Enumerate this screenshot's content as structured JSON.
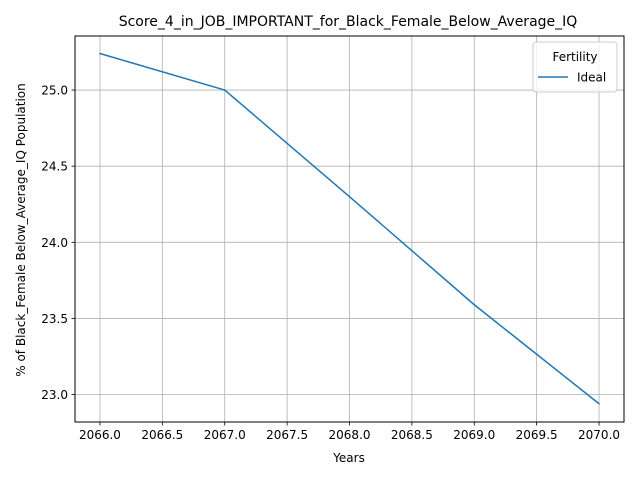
{
  "chart_data": {
    "type": "line",
    "title": "Score_4_in_JOB_IMPORTANT_for_Black_Female_Below_Average_IQ",
    "xlabel": "Years",
    "ylabel": "% of Black_Female Below_Average_IQ Population",
    "xlim": [
      2065.8,
      2070.2
    ],
    "ylim": [
      22.82,
      25.355
    ],
    "xticks": [
      2066.0,
      2066.5,
      2067.0,
      2067.5,
      2068.0,
      2068.5,
      2069.0,
      2069.5,
      2070.0
    ],
    "xtick_labels": [
      "2066.0",
      "2066.5",
      "2067.0",
      "2067.5",
      "2068.0",
      "2068.5",
      "2069.0",
      "2069.5",
      "2070.0"
    ],
    "yticks": [
      23.0,
      23.5,
      24.0,
      24.5,
      25.0
    ],
    "ytick_labels": [
      "23.0",
      "23.5",
      "24.0",
      "24.5",
      "25.0"
    ],
    "grid": true,
    "legend": {
      "title": "Fertility",
      "placement": "top-right"
    },
    "series": [
      {
        "name": "Ideal",
        "color": "#1f77b4",
        "x": [
          2066,
          2067,
          2068,
          2069,
          2070
        ],
        "y": [
          25.24,
          25.0,
          24.3,
          23.59,
          22.94
        ]
      }
    ]
  }
}
